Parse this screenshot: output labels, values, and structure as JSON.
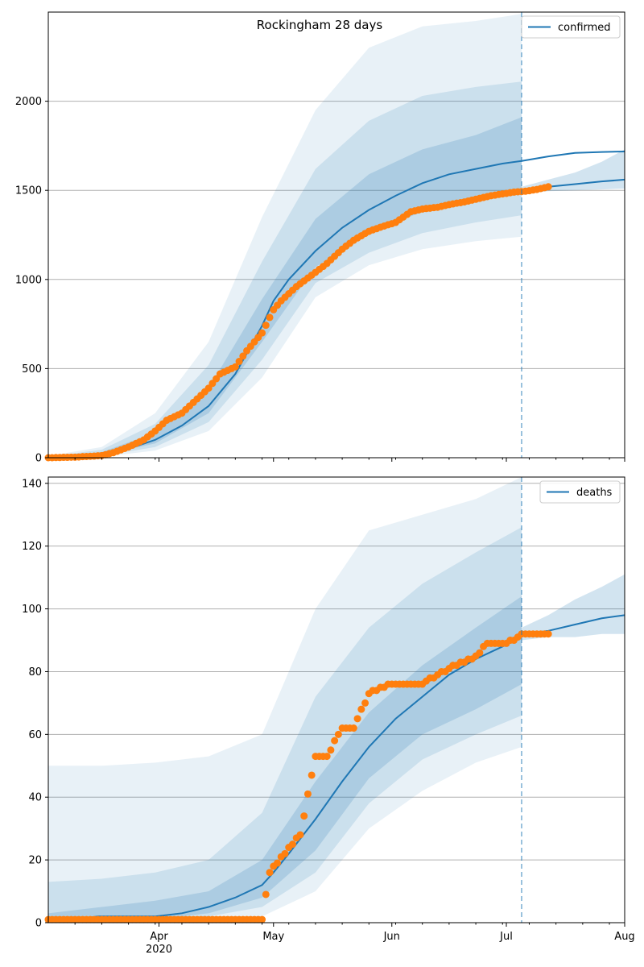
{
  "colors": {
    "model": "#1f77b4",
    "observed": "#ff7f0e",
    "band": "#1f77b4",
    "grid": "#b0b0b0",
    "axis": "#000000"
  },
  "chart_data": [
    {
      "type": "line",
      "title": "Rockingham 28 days",
      "xlabel": "",
      "ylabel": "",
      "ylim": [
        0,
        2500
      ],
      "yticks": [
        0,
        500,
        1000,
        1500,
        2000
      ],
      "x_range": [
        "2020-03-03",
        "2020-08-01"
      ],
      "forecast_start": "2020-07-05",
      "grid": "horizontal",
      "legend": {
        "position": "top-right",
        "label": "confirmed"
      },
      "median": {
        "x": [
          "2020-03-03",
          "2020-03-10",
          "2020-03-17",
          "2020-03-24",
          "2020-03-31",
          "2020-04-07",
          "2020-04-14",
          "2020-04-21",
          "2020-04-28",
          "2020-05-01",
          "2020-05-05",
          "2020-05-12",
          "2020-05-19",
          "2020-05-26",
          "2020-06-02",
          "2020-06-09",
          "2020-06-16",
          "2020-06-23",
          "2020-06-30",
          "2020-07-05",
          "2020-07-12",
          "2020-07-19",
          "2020-07-26",
          "2020-08-01"
        ],
        "y": [
          2,
          8,
          20,
          50,
          100,
          180,
          290,
          470,
          740,
          880,
          1000,
          1160,
          1290,
          1390,
          1470,
          1540,
          1590,
          1620,
          1650,
          1665,
          1690,
          1710,
          1715,
          1718
        ]
      },
      "bands": [
        {
          "name": "p2.5-p97.5",
          "x": [
            "2020-03-03",
            "2020-03-17",
            "2020-03-31",
            "2020-04-14",
            "2020-04-28",
            "2020-05-12",
            "2020-05-26",
            "2020-06-09",
            "2020-06-23",
            "2020-07-05"
          ],
          "lower": [
            0,
            5,
            40,
            150,
            450,
            900,
            1080,
            1170,
            1215,
            1240
          ],
          "upper": [
            10,
            60,
            250,
            650,
            1350,
            1950,
            2300,
            2420,
            2450,
            2490
          ]
        },
        {
          "name": "p10-p90",
          "x": [
            "2020-03-03",
            "2020-03-17",
            "2020-03-31",
            "2020-04-14",
            "2020-04-28",
            "2020-05-12",
            "2020-05-26",
            "2020-06-09",
            "2020-06-23",
            "2020-07-05"
          ],
          "lower": [
            0,
            10,
            60,
            200,
            550,
            980,
            1150,
            1260,
            1320,
            1360
          ],
          "upper": [
            5,
            45,
            190,
            520,
            1100,
            1620,
            1890,
            2030,
            2080,
            2110
          ]
        },
        {
          "name": "p25-p75",
          "x": [
            "2020-03-03",
            "2020-03-17",
            "2020-03-31",
            "2020-04-14",
            "2020-04-28",
            "2020-05-12",
            "2020-05-26",
            "2020-06-09",
            "2020-06-23",
            "2020-07-05"
          ],
          "lower": [
            0,
            14,
            80,
            250,
            650,
            1070,
            1260,
            1380,
            1440,
            1480
          ],
          "upper": [
            3,
            32,
            140,
            390,
            890,
            1340,
            1590,
            1730,
            1810,
            1910
          ]
        }
      ],
      "forecast": {
        "x": [
          "2020-07-05",
          "2020-07-12",
          "2020-07-19",
          "2020-07-26",
          "2020-08-01"
        ],
        "median": [
          1500,
          1520,
          1535,
          1550,
          1560
        ],
        "lower": [
          1480,
          1495,
          1500,
          1505,
          1510
        ],
        "upper": [
          1520,
          1560,
          1600,
          1660,
          1730
        ]
      },
      "observed": {
        "x": [
          "2020-03-03",
          "2020-03-10",
          "2020-03-17",
          "2020-03-20",
          "2020-03-24",
          "2020-03-28",
          "2020-03-31",
          "2020-04-03",
          "2020-04-07",
          "2020-04-10",
          "2020-04-14",
          "2020-04-17",
          "2020-04-21",
          "2020-04-24",
          "2020-04-28",
          "2020-05-01",
          "2020-05-03",
          "2020-05-07",
          "2020-05-12",
          "2020-05-15",
          "2020-05-19",
          "2020-05-22",
          "2020-05-26",
          "2020-05-30",
          "2020-06-02",
          "2020-06-06",
          "2020-06-09",
          "2020-06-13",
          "2020-06-16",
          "2020-06-20",
          "2020-06-23",
          "2020-06-27",
          "2020-06-30",
          "2020-07-03",
          "2020-07-06",
          "2020-07-09",
          "2020-07-12"
        ],
        "y": [
          0,
          3,
          12,
          28,
          60,
          100,
          150,
          210,
          250,
          310,
          390,
          470,
          510,
          600,
          700,
          830,
          880,
          960,
          1040,
          1090,
          1170,
          1220,
          1270,
          1300,
          1320,
          1380,
          1395,
          1405,
          1420,
          1435,
          1450,
          1470,
          1480,
          1490,
          1495,
          1505,
          1520
        ]
      }
    },
    {
      "type": "line",
      "title": "",
      "xlabel": "",
      "ylabel": "",
      "ylim": [
        0,
        142
      ],
      "yticks": [
        0,
        20,
        40,
        60,
        80,
        100,
        120,
        140
      ],
      "x_range": [
        "2020-03-03",
        "2020-08-01"
      ],
      "xticks": [
        {
          "date": "2020-04-01",
          "label": "Apr",
          "sublabel": "2020"
        },
        {
          "date": "2020-05-01",
          "label": "May",
          "sublabel": ""
        },
        {
          "date": "2020-06-01",
          "label": "Jun",
          "sublabel": ""
        },
        {
          "date": "2020-07-01",
          "label": "Jul",
          "sublabel": ""
        },
        {
          "date": "2020-08-01",
          "label": "Aug",
          "sublabel": ""
        }
      ],
      "forecast_start": "2020-07-05",
      "grid": "horizontal",
      "legend": {
        "position": "top-right",
        "label": "deaths"
      },
      "median": {
        "x": [
          "2020-03-03",
          "2020-03-10",
          "2020-03-16",
          "2020-03-31",
          "2020-04-07",
          "2020-04-14",
          "2020-04-21",
          "2020-04-28",
          "2020-05-01",
          "2020-05-05",
          "2020-05-12",
          "2020-05-19",
          "2020-05-26",
          "2020-06-02",
          "2020-06-09",
          "2020-06-16",
          "2020-06-23",
          "2020-06-30",
          "2020-07-05"
        ],
        "y": [
          1,
          1,
          2,
          2,
          3,
          5,
          8,
          12,
          16,
          22,
          33,
          45,
          56,
          65,
          72,
          79,
          84,
          88,
          91
        ]
      },
      "bands": [
        {
          "name": "p2.5-p97.5",
          "x": [
            "2020-03-03",
            "2020-03-17",
            "2020-03-31",
            "2020-04-14",
            "2020-04-28",
            "2020-05-12",
            "2020-05-26",
            "2020-06-09",
            "2020-06-23",
            "2020-07-05"
          ],
          "lower": [
            0,
            0,
            0,
            1,
            2,
            10,
            30,
            42,
            51,
            56
          ],
          "upper": [
            50,
            50,
            51,
            53,
            60,
            100,
            125,
            130,
            135,
            142
          ]
        },
        {
          "name": "p10-p90",
          "x": [
            "2020-03-03",
            "2020-03-17",
            "2020-03-31",
            "2020-04-14",
            "2020-04-28",
            "2020-05-12",
            "2020-05-26",
            "2020-06-09",
            "2020-06-23",
            "2020-07-05"
          ],
          "lower": [
            0,
            0,
            0,
            2,
            5,
            16,
            38,
            52,
            60,
            66
          ],
          "upper": [
            13,
            14,
            16,
            20,
            35,
            72,
            94,
            108,
            118,
            126
          ]
        },
        {
          "name": "p25-p75",
          "x": [
            "2020-03-03",
            "2020-03-17",
            "2020-03-31",
            "2020-04-14",
            "2020-04-28",
            "2020-05-12",
            "2020-05-26",
            "2020-06-09",
            "2020-06-23",
            "2020-07-05"
          ],
          "lower": [
            0,
            0,
            1,
            3,
            8,
            23,
            46,
            60,
            68,
            76
          ],
          "upper": [
            3,
            5,
            7,
            10,
            20,
            45,
            67,
            82,
            94,
            104
          ]
        }
      ],
      "forecast": {
        "x": [
          "2020-07-05",
          "2020-07-12",
          "2020-07-19",
          "2020-07-26",
          "2020-08-01"
        ],
        "median": [
          92,
          93,
          95,
          97,
          98
        ],
        "lower": [
          90,
          91,
          91,
          92,
          92
        ],
        "upper": [
          94,
          98,
          103,
          107,
          111
        ]
      },
      "observed": {
        "x": [
          "2020-03-03",
          "2020-04-28",
          "2020-04-30",
          "2020-05-08",
          "2020-05-12",
          "2020-05-15",
          "2020-05-19",
          "2020-05-22",
          "2020-05-26",
          "2020-05-29",
          "2020-06-02",
          "2020-06-09",
          "2020-06-13",
          "2020-06-16",
          "2020-06-20",
          "2020-06-23",
          "2020-06-26",
          "2020-06-30",
          "2020-07-03",
          "2020-07-05",
          "2020-07-12"
        ],
        "y": [
          1,
          1,
          16,
          28,
          53,
          53,
          62,
          62,
          73,
          75,
          76,
          76,
          79,
          81,
          83,
          85,
          89,
          89,
          90,
          92,
          92
        ]
      }
    }
  ]
}
